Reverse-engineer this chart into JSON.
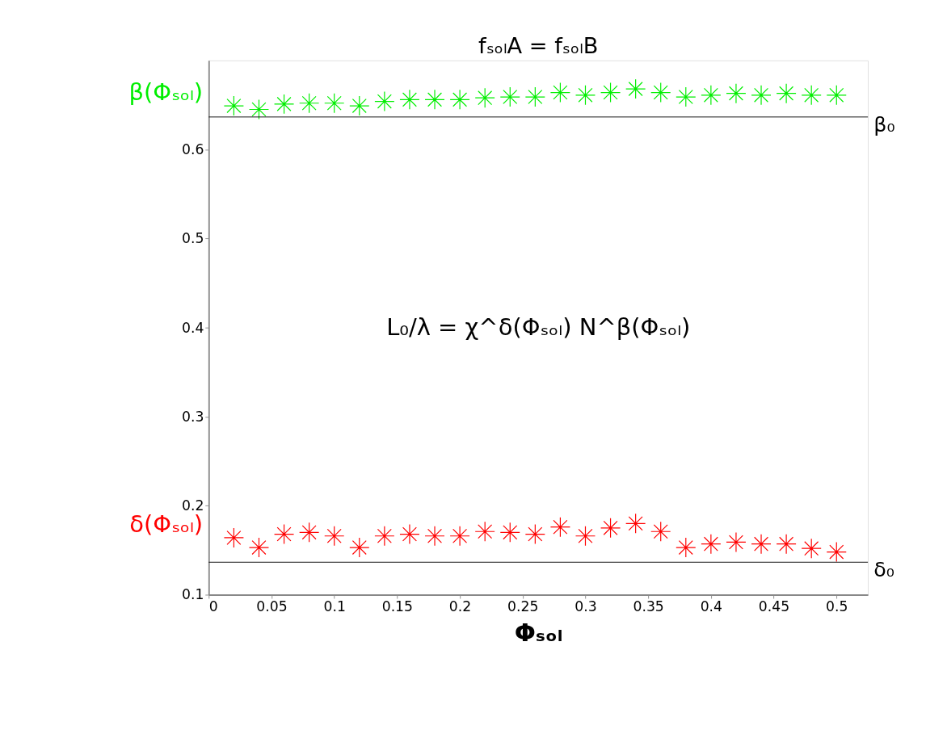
{
  "chart_data": {
    "type": "scatter",
    "title": "fₛₒₗA = fₛₒₗB",
    "xlabel": "Φₛₒₗ",
    "x": [
      0.02,
      0.04,
      0.06,
      0.08,
      0.1,
      0.12,
      0.14,
      0.16,
      0.18,
      0.2,
      0.22,
      0.24,
      0.26,
      0.28,
      0.3,
      0.32,
      0.34,
      0.36,
      0.38,
      0.4,
      0.42,
      0.44,
      0.46,
      0.48,
      0.5
    ],
    "series": [
      {
        "name": "β(Φₛₒₗ)",
        "color": "#00ee00",
        "values": [
          0.649,
          0.645,
          0.651,
          0.652,
          0.652,
          0.649,
          0.654,
          0.656,
          0.656,
          0.656,
          0.658,
          0.659,
          0.659,
          0.664,
          0.661,
          0.664,
          0.668,
          0.664,
          0.659,
          0.661,
          0.663,
          0.661,
          0.663,
          0.661,
          0.661
        ]
      },
      {
        "name": "δ(Φₛₒₗ)",
        "color": "#ff0000",
        "values": [
          0.164,
          0.153,
          0.168,
          0.17,
          0.166,
          0.153,
          0.166,
          0.168,
          0.166,
          0.166,
          0.171,
          0.17,
          0.168,
          0.176,
          0.166,
          0.175,
          0.18,
          0.171,
          0.153,
          0.157,
          0.159,
          0.157,
          0.157,
          0.152,
          0.148
        ]
      }
    ],
    "ref_lines": [
      {
        "axis": "y",
        "value": 0.6365,
        "label": "β₀",
        "color": "#000000"
      },
      {
        "axis": "y",
        "value": 0.1365,
        "label": "δ₀",
        "color": "#000000"
      }
    ],
    "annotations": [
      "L₀/λ = χ^δ(Φₛₒₗ) N^β(Φₛₒₗ)"
    ],
    "xlim": [
      0,
      0.525
    ],
    "ylim": [
      0.1,
      0.7
    ],
    "xticks": [
      0,
      0.05,
      0.1,
      0.15,
      0.2,
      0.25,
      0.3,
      0.35,
      0.4,
      0.45,
      0.5
    ],
    "yticks": [
      0.1,
      0.2,
      0.3,
      0.4,
      0.5,
      0.6
    ],
    "marker": "cross",
    "grid": false,
    "legend": "left"
  }
}
